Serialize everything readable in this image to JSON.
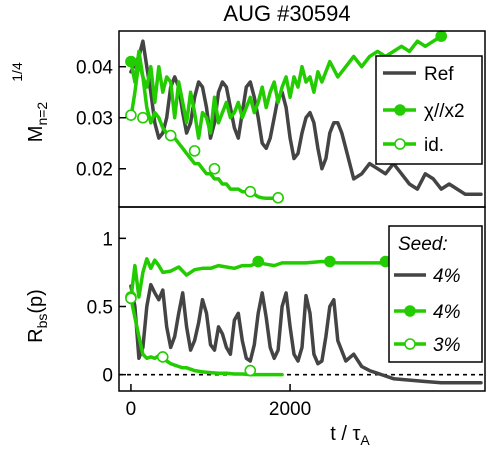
{
  "title": "AUG #30594",
  "colors": {
    "ref": "#444444",
    "chi": "#22cc00",
    "id": "#22cc00",
    "zero_line": "#000000"
  },
  "chart_data": [
    {
      "type": "line",
      "panel": "top",
      "ylabel": {
        "main": "M",
        "sub": "n=2",
        "sup": "1/4"
      },
      "xlim": [
        -150,
        4450
      ],
      "ylim": [
        0.0125,
        0.047
      ],
      "yticks": [
        0.02,
        0.03,
        0.04
      ],
      "ytick_labels": [
        "0.02",
        "0.03",
        "0.04"
      ],
      "legend": {
        "position": "right",
        "entries": [
          "Ref",
          "χ//x2",
          "id."
        ]
      },
      "series": [
        {
          "name": "Ref",
          "key": "ref",
          "marker": "none",
          "x": [
            0,
            100,
            150,
            200,
            250,
            300,
            350,
            400,
            450,
            500,
            550,
            600,
            650,
            700,
            750,
            800,
            850,
            900,
            950,
            1000,
            1050,
            1100,
            1150,
            1200,
            1250,
            1300,
            1350,
            1400,
            1450,
            1500,
            1550,
            1600,
            1650,
            1700,
            1750,
            1800,
            1850,
            1900,
            1950,
            2000,
            2050,
            2100,
            2150,
            2200,
            2250,
            2300,
            2350,
            2400,
            2450,
            2500,
            2550,
            2600,
            2650,
            2700,
            2800,
            2900,
            3000,
            3100,
            3200,
            3300,
            3400,
            3500,
            3600,
            3700,
            3800,
            3900,
            4000,
            4100,
            4200,
            4300,
            4400
          ],
          "y": [
            0.039,
            0.042,
            0.045,
            0.04,
            0.035,
            0.029,
            0.026,
            0.027,
            0.03,
            0.036,
            0.038,
            0.036,
            0.031,
            0.027,
            0.029,
            0.034,
            0.037,
            0.036,
            0.032,
            0.026,
            0.029,
            0.035,
            0.037,
            0.036,
            0.032,
            0.028,
            0.026,
            0.031,
            0.036,
            0.037,
            0.034,
            0.03,
            0.025,
            0.024,
            0.026,
            0.03,
            0.034,
            0.035,
            0.032,
            0.026,
            0.022,
            0.023,
            0.027,
            0.03,
            0.031,
            0.029,
            0.024,
            0.02,
            0.022,
            0.027,
            0.029,
            0.029,
            0.027,
            0.024,
            0.018,
            0.019,
            0.021,
            0.02,
            0.019,
            0.021,
            0.019,
            0.017,
            0.016,
            0.019,
            0.018,
            0.016,
            0.017,
            0.016,
            0.015,
            0.015,
            0.015
          ]
        },
        {
          "name": "χ//x2",
          "key": "chi",
          "marker": "filled",
          "x": [
            0,
            50,
            100,
            150,
            200,
            250,
            300,
            350,
            400,
            450,
            500,
            550,
            600,
            650,
            700,
            750,
            800,
            850,
            900,
            950,
            1000,
            1050,
            1100,
            1150,
            1200,
            1250,
            1300,
            1350,
            1400,
            1450,
            1500,
            1550,
            1600,
            1650,
            1700,
            1750,
            1800,
            1850,
            1900,
            1950,
            2000,
            2050,
            2100,
            2150,
            2200,
            2250,
            2300,
            2350,
            2400,
            2500,
            2600,
            2700,
            2800,
            2900,
            3000,
            3100,
            3200,
            3300,
            3400,
            3500,
            3600,
            3700,
            3800,
            3900
          ],
          "y": [
            0.041,
            0.037,
            0.043,
            0.038,
            0.036,
            0.04,
            0.033,
            0.04,
            0.035,
            0.038,
            0.037,
            0.03,
            0.037,
            0.033,
            0.029,
            0.035,
            0.031,
            0.026,
            0.031,
            0.03,
            0.027,
            0.034,
            0.029,
            0.031,
            0.033,
            0.03,
            0.031,
            0.033,
            0.03,
            0.032,
            0.034,
            0.031,
            0.033,
            0.036,
            0.032,
            0.035,
            0.037,
            0.033,
            0.036,
            0.038,
            0.034,
            0.038,
            0.036,
            0.04,
            0.037,
            0.038,
            0.035,
            0.039,
            0.037,
            0.041,
            0.038,
            0.04,
            0.042,
            0.04,
            0.042,
            0.043,
            0.042,
            0.043,
            0.044,
            0.043,
            0.045,
            0.044,
            0.045,
            0.046
          ],
          "marker_points": [
            [
              0,
              0.041
            ],
            [
              3900,
              0.046
            ]
          ]
        },
        {
          "name": "id.",
          "key": "id",
          "marker": "open",
          "x": [
            0,
            50,
            100,
            150,
            200,
            250,
            300,
            350,
            400,
            450,
            500,
            550,
            600,
            650,
            700,
            750,
            800,
            850,
            900,
            950,
            1000,
            1050,
            1100,
            1150,
            1200,
            1250,
            1300,
            1350,
            1400,
            1450,
            1500,
            1550,
            1600,
            1650,
            1700,
            1750,
            1800,
            1850,
            1900
          ],
          "y": [
            0.03,
            0.035,
            0.041,
            0.038,
            0.032,
            0.029,
            0.031,
            0.03,
            0.028,
            0.027,
            0.026,
            0.026,
            0.025,
            0.024,
            0.023,
            0.022,
            0.021,
            0.021,
            0.02,
            0.019,
            0.019,
            0.018,
            0.018,
            0.017,
            0.017,
            0.016,
            0.016,
            0.016,
            0.0155,
            0.0155,
            0.0155,
            0.015,
            0.0145,
            0.0143,
            0.0142,
            0.0142,
            0.0142,
            0.0142,
            0.0142
          ],
          "marker_points": [
            [
              0,
              0.0305
            ],
            [
              150,
              0.03
            ],
            [
              500,
              0.0265
            ],
            [
              800,
              0.0235
            ],
            [
              1050,
              0.02
            ],
            [
              1500,
              0.0155
            ],
            [
              1850,
              0.0143
            ]
          ]
        }
      ]
    },
    {
      "type": "line",
      "panel": "bottom",
      "ylabel": {
        "main": "R",
        "sub": "bs",
        "rest": "(p)"
      },
      "xlabel": {
        "main": "t / τ",
        "sub": "A"
      },
      "xlim": [
        -150,
        4450
      ],
      "ylim": [
        -0.12,
        1.23
      ],
      "xticks": [
        0,
        2000
      ],
      "xtick_labels": [
        "0",
        "2000"
      ],
      "yticks": [
        0,
        0.5,
        1
      ],
      "ytick_labels": [
        "0",
        "0.5",
        "1"
      ],
      "zero_line": 0,
      "legend": {
        "position": "right",
        "title": "Seed:",
        "entries": [
          "4%",
          "4%",
          "3%"
        ]
      },
      "series": [
        {
          "name": "4%",
          "key": "ref",
          "marker": "none",
          "x": [
            0,
            50,
            100,
            150,
            200,
            250,
            300,
            350,
            400,
            450,
            500,
            550,
            600,
            650,
            700,
            750,
            800,
            850,
            900,
            950,
            1000,
            1050,
            1100,
            1150,
            1200,
            1250,
            1300,
            1350,
            1400,
            1450,
            1500,
            1550,
            1600,
            1650,
            1700,
            1750,
            1800,
            1850,
            1900,
            1950,
            2000,
            2050,
            2100,
            2150,
            2200,
            2250,
            2300,
            2350,
            2400,
            2450,
            2500,
            2550,
            2600,
            2700,
            2800,
            2900,
            3000,
            3100,
            3200,
            3300,
            3500,
            3700,
            3900,
            4100,
            4300,
            4400
          ],
          "y": [
            0.65,
            0.5,
            0.12,
            0.2,
            0.5,
            0.66,
            0.6,
            0.55,
            0.62,
            0.35,
            0.2,
            0.28,
            0.45,
            0.6,
            0.35,
            0.18,
            0.25,
            0.38,
            0.55,
            0.45,
            0.22,
            0.18,
            0.35,
            0.3,
            0.2,
            0.15,
            0.4,
            0.45,
            0.25,
            0.12,
            0.1,
            0.22,
            0.45,
            0.6,
            0.42,
            0.2,
            0.12,
            0.18,
            0.5,
            0.6,
            0.35,
            0.15,
            0.1,
            0.2,
            0.58,
            0.45,
            0.15,
            0.08,
            0.1,
            0.28,
            0.5,
            0.55,
            0.25,
            0.1,
            0.15,
            0.06,
            0.03,
            0.01,
            -0.01,
            -0.03,
            -0.04,
            -0.05,
            -0.06,
            -0.06,
            -0.06,
            -0.06
          ]
        },
        {
          "name": "4%",
          "key": "chi",
          "marker": "filled",
          "x": [
            0,
            50,
            100,
            150,
            200,
            250,
            300,
            350,
            400,
            500,
            600,
            700,
            800,
            900,
            1000,
            1100,
            1200,
            1300,
            1400,
            1500,
            1600,
            1700,
            1800,
            1900,
            2000,
            2200,
            2400,
            2600,
            2800,
            3000,
            3200,
            3400,
            3600,
            3800,
            3900
          ],
          "y": [
            0.56,
            0.8,
            0.57,
            0.75,
            0.85,
            0.78,
            0.84,
            0.8,
            0.75,
            0.76,
            0.79,
            0.73,
            0.77,
            0.78,
            0.78,
            0.8,
            0.79,
            0.78,
            0.8,
            0.8,
            0.82,
            0.81,
            0.8,
            0.82,
            0.82,
            0.82,
            0.83,
            0.82,
            0.82,
            0.82,
            0.82,
            0.82,
            0.82,
            0.82,
            0.82
          ],
          "marker_points": [
            [
              0,
              0.57
            ],
            [
              1600,
              0.83
            ],
            [
              2500,
              0.83
            ],
            [
              3200,
              0.83
            ],
            [
              3900,
              0.82
            ]
          ]
        },
        {
          "name": "3%",
          "key": "id",
          "marker": "open",
          "x": [
            0,
            50,
            100,
            150,
            200,
            250,
            300,
            350,
            400,
            450,
            500,
            550,
            600,
            650,
            700,
            750,
            800,
            900,
            1000,
            1100,
            1200,
            1300,
            1400,
            1500,
            1600,
            1700,
            1800,
            1900
          ],
          "y": [
            0.56,
            0.42,
            0.28,
            0.15,
            0.12,
            0.13,
            0.12,
            0.14,
            0.12,
            0.1,
            0.08,
            0.07,
            0.06,
            0.05,
            0.05,
            0.04,
            0.03,
            0.02,
            0.015,
            0.01,
            0.01,
            0.005,
            0.005,
            0.0,
            0.0,
            0.0,
            0.0,
            0.0
          ],
          "marker_points": [
            [
              0,
              0.56
            ],
            [
              400,
              0.13
            ],
            [
              1500,
              0.03
            ]
          ]
        }
      ]
    }
  ]
}
